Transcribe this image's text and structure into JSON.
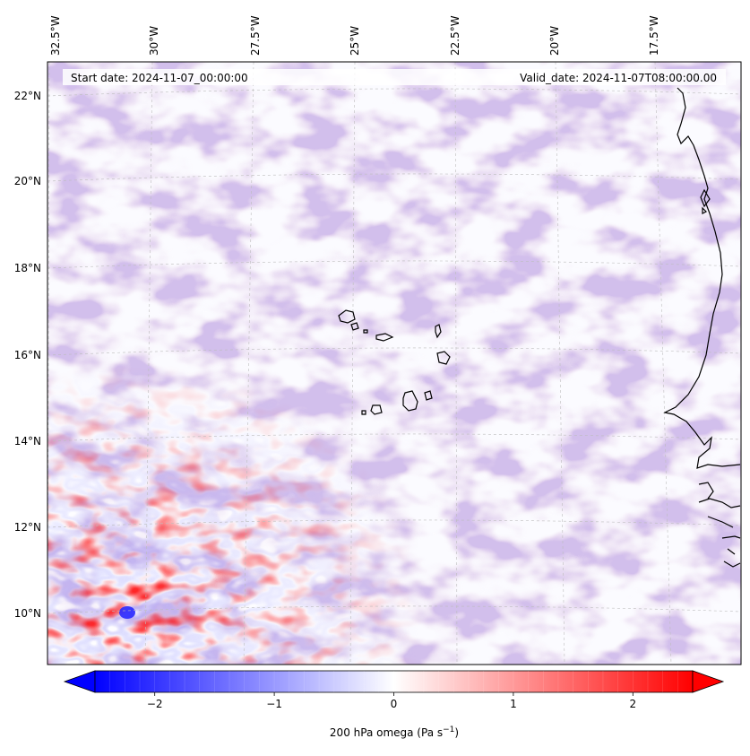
{
  "map": {
    "start_label": "Start date: 2024-11-07_00:00:00",
    "valid_label": "Valid_date: 2024-11-07T08:00:00.00",
    "lon_labels": [
      "32.5°W",
      "30°W",
      "27.5°W",
      "25°W",
      "22.5°W",
      "20°W",
      "17.5°W"
    ],
    "lat_labels": [
      "22°N",
      "20°N",
      "18°N",
      "16°N",
      "14°N",
      "12°N",
      "10°N"
    ],
    "extent": {
      "lon_min": -32.8,
      "lon_max": -15.6,
      "lat_min": 8.9,
      "lat_max": 22.7
    }
  },
  "colorbar": {
    "ticks": [
      "−2",
      "−1",
      "0",
      "1",
      "2"
    ],
    "tick_values": [
      -2,
      -1,
      0,
      1,
      2
    ],
    "range": [
      -2.5,
      2.5
    ],
    "label_main": "200 hPa omega (Pa s",
    "label_sup": "−1",
    "label_end": ")",
    "colors": {
      "low": "#0000ff",
      "mid": "#ffffff",
      "high": "#ff0000"
    }
  },
  "colors": {
    "coast": "#000000",
    "grid": "#bdbdbd",
    "frame": "#000000"
  }
}
